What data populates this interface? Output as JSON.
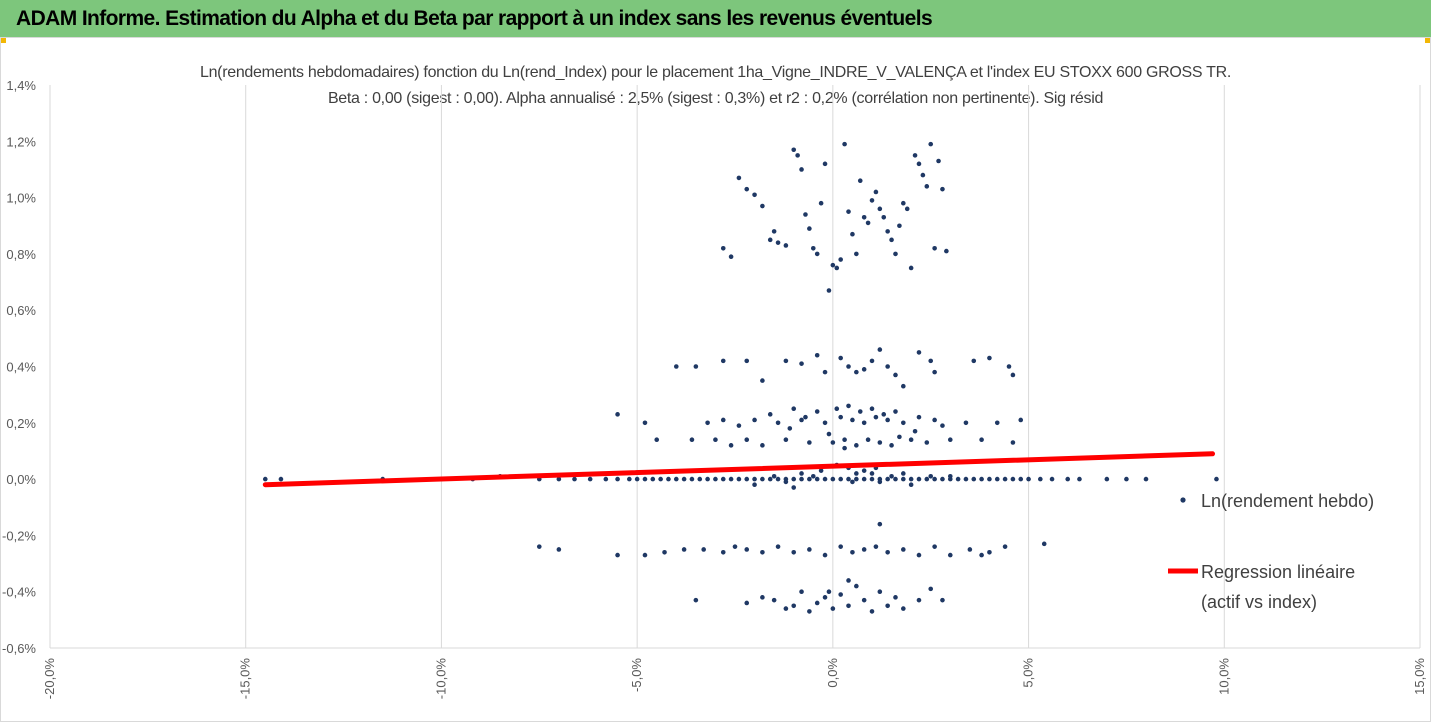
{
  "header": {
    "title": "ADAM Informe. Estimation du Alpha et du Beta par rapport à un index sans les revenus éventuels"
  },
  "colors": {
    "header_bg": "#7dc67c",
    "points": "#1f3864",
    "regression": "#ff0000",
    "grid": "#d9d9d9",
    "corner_marks": "#f2b705"
  },
  "chart_data": {
    "type": "scatter",
    "title_line1": "Ln(rendements hebdomadaires) fonction du Ln(rend_Index) pour le placement 1ha_Vigne_INDRE_V_VALENÇA et l'index EU STOXX 600 GROSS TR.",
    "title_line2": "Beta : 0,00 (sigest : 0,00). Alpha annualisé : 2,5% (sigest : 0,3%) et r2 : 0,2% (corrélation non pertinente). Sig résid",
    "xlim": [
      -0.2,
      0.15
    ],
    "ylim": [
      -0.006,
      0.014
    ],
    "x_ticks": [
      -0.2,
      -0.15,
      -0.1,
      -0.05,
      0.0,
      0.05,
      0.1,
      0.15
    ],
    "x_tick_labels": [
      "-20,0%",
      "-15,0%",
      "-10,0%",
      "-5,0%",
      "0,0%",
      "5,0%",
      "10,0%",
      "15,0%"
    ],
    "y_ticks": [
      -0.006,
      -0.004,
      -0.002,
      0.0,
      0.002,
      0.004,
      0.006,
      0.008,
      0.01,
      0.012,
      0.014
    ],
    "y_tick_labels": [
      "-0,6%",
      "-0,4%",
      "-0,2%",
      "0,0%",
      "0,2%",
      "0,4%",
      "0,6%",
      "0,8%",
      "1,0%",
      "1,2%",
      "1,4%"
    ],
    "grid": "vertical",
    "legend_position": "right",
    "series": [
      {
        "name": "Ln(rendement hebdo)",
        "kind": "points",
        "points": [
          [
            -0.145,
            0.0
          ],
          [
            -0.141,
            0.0
          ],
          [
            -0.115,
            0.0
          ],
          [
            -0.1,
            0.0
          ],
          [
            -0.092,
            0.0
          ],
          [
            -0.085,
            0.0001
          ],
          [
            -0.075,
            0.0
          ],
          [
            -0.07,
            0.0
          ],
          [
            -0.066,
            0.0
          ],
          [
            -0.062,
            0.0
          ],
          [
            -0.058,
            0.0
          ],
          [
            -0.055,
            0.0
          ],
          [
            -0.052,
            0.0
          ],
          [
            -0.05,
            0.0
          ],
          [
            -0.048,
            0.0
          ],
          [
            -0.046,
            0.0
          ],
          [
            -0.044,
            0.0
          ],
          [
            -0.042,
            0.0
          ],
          [
            -0.04,
            0.0
          ],
          [
            -0.038,
            0.0
          ],
          [
            -0.036,
            0.0
          ],
          [
            -0.034,
            0.0
          ],
          [
            -0.032,
            0.0
          ],
          [
            -0.03,
            0.0
          ],
          [
            -0.028,
            0.0
          ],
          [
            -0.026,
            0.0
          ],
          [
            -0.024,
            0.0
          ],
          [
            -0.022,
            0.0
          ],
          [
            -0.02,
            0.0
          ],
          [
            -0.018,
            0.0
          ],
          [
            -0.016,
            0.0
          ],
          [
            -0.014,
            0.0
          ],
          [
            -0.012,
            0.0
          ],
          [
            -0.01,
            0.0
          ],
          [
            -0.008,
            0.0
          ],
          [
            -0.006,
            0.0
          ],
          [
            -0.004,
            0.0
          ],
          [
            -0.002,
            0.0
          ],
          [
            0.0,
            0.0
          ],
          [
            0.002,
            0.0
          ],
          [
            0.004,
            0.0
          ],
          [
            0.006,
            0.0
          ],
          [
            0.008,
            0.0
          ],
          [
            0.01,
            0.0
          ],
          [
            0.012,
            0.0
          ],
          [
            0.014,
            0.0
          ],
          [
            0.016,
            0.0
          ],
          [
            0.018,
            0.0
          ],
          [
            0.02,
            0.0
          ],
          [
            0.022,
            0.0
          ],
          [
            0.024,
            0.0
          ],
          [
            0.026,
            0.0
          ],
          [
            0.028,
            0.0
          ],
          [
            0.03,
            0.0
          ],
          [
            0.032,
            0.0
          ],
          [
            0.034,
            0.0
          ],
          [
            0.036,
            0.0
          ],
          [
            0.038,
            0.0
          ],
          [
            0.04,
            0.0
          ],
          [
            0.042,
            0.0
          ],
          [
            0.044,
            0.0
          ],
          [
            0.046,
            0.0
          ],
          [
            0.048,
            0.0
          ],
          [
            0.05,
            0.0
          ],
          [
            0.053,
            0.0
          ],
          [
            0.056,
            0.0
          ],
          [
            0.06,
            0.0
          ],
          [
            0.063,
            0.0
          ],
          [
            0.07,
            0.0
          ],
          [
            0.075,
            0.0
          ],
          [
            0.08,
            0.0
          ],
          [
            0.098,
            0.0
          ],
          [
            -0.02,
            -0.0002
          ],
          [
            -0.01,
            -0.0003
          ],
          [
            -0.005,
            0.0001
          ],
          [
            0.005,
            -0.0001
          ],
          [
            0.01,
            0.0002
          ],
          [
            0.015,
            0.0001
          ],
          [
            0.02,
            -0.0002
          ],
          [
            0.025,
            0.0001
          ],
          [
            -0.015,
            0.0001
          ],
          [
            0.008,
            0.0003
          ],
          [
            -0.008,
            0.0002
          ],
          [
            0.012,
            -0.0001
          ],
          [
            0.018,
            0.0002
          ],
          [
            0.004,
            0.0004
          ],
          [
            -0.003,
            0.0003
          ],
          [
            0.001,
            0.0005
          ],
          [
            0.011,
            0.0004
          ],
          [
            0.006,
            0.0002
          ],
          [
            -0.012,
            -0.0001
          ],
          [
            0.03,
            0.0001
          ],
          [
            -0.055,
            0.0023
          ],
          [
            -0.048,
            0.002
          ],
          [
            -0.045,
            0.0014
          ],
          [
            -0.036,
            0.0014
          ],
          [
            -0.032,
            0.002
          ],
          [
            -0.03,
            0.0014
          ],
          [
            -0.028,
            0.0021
          ],
          [
            -0.026,
            0.0012
          ],
          [
            -0.024,
            0.0019
          ],
          [
            -0.022,
            0.0014
          ],
          [
            -0.02,
            0.0021
          ],
          [
            -0.018,
            0.0012
          ],
          [
            -0.016,
            0.0023
          ],
          [
            -0.014,
            0.002
          ],
          [
            -0.012,
            0.0014
          ],
          [
            -0.01,
            0.0025
          ],
          [
            -0.008,
            0.0021
          ],
          [
            -0.006,
            0.0013
          ],
          [
            -0.004,
            0.0024
          ],
          [
            -0.002,
            0.002
          ],
          [
            0.0,
            0.0013
          ],
          [
            0.001,
            0.0025
          ],
          [
            0.002,
            0.0022
          ],
          [
            0.003,
            0.0014
          ],
          [
            0.004,
            0.0026
          ],
          [
            0.005,
            0.0021
          ],
          [
            0.006,
            0.0012
          ],
          [
            0.007,
            0.0024
          ],
          [
            0.008,
            0.002
          ],
          [
            0.009,
            0.0014
          ],
          [
            0.01,
            0.0025
          ],
          [
            0.011,
            0.0022
          ],
          [
            0.012,
            0.0013
          ],
          [
            0.013,
            0.0023
          ],
          [
            0.014,
            0.0021
          ],
          [
            0.015,
            0.0012
          ],
          [
            0.016,
            0.0024
          ],
          [
            0.018,
            0.002
          ],
          [
            0.02,
            0.0014
          ],
          [
            0.022,
            0.0022
          ],
          [
            0.024,
            0.0013
          ],
          [
            0.026,
            0.0021
          ],
          [
            0.028,
            0.0019
          ],
          [
            0.03,
            0.0014
          ],
          [
            0.034,
            0.002
          ],
          [
            0.038,
            0.0014
          ],
          [
            0.042,
            0.002
          ],
          [
            0.046,
            0.0013
          ],
          [
            0.048,
            0.0021
          ],
          [
            -0.001,
            0.0016
          ],
          [
            0.003,
            0.0011
          ],
          [
            -0.007,
            0.0022
          ],
          [
            0.017,
            0.0015
          ],
          [
            0.021,
            0.0017
          ],
          [
            -0.011,
            0.0018
          ],
          [
            -0.04,
            0.004
          ],
          [
            -0.035,
            0.004
          ],
          [
            -0.028,
            0.0042
          ],
          [
            -0.022,
            0.0042
          ],
          [
            -0.012,
            0.0042
          ],
          [
            -0.008,
            0.0041
          ],
          [
            -0.004,
            0.0044
          ],
          [
            -0.002,
            0.0038
          ],
          [
            0.002,
            0.0043
          ],
          [
            0.004,
            0.004
          ],
          [
            0.006,
            0.0038
          ],
          [
            0.01,
            0.0042
          ],
          [
            0.012,
            0.0046
          ],
          [
            0.014,
            0.004
          ],
          [
            0.016,
            0.0037
          ],
          [
            0.018,
            0.0033
          ],
          [
            0.022,
            0.0045
          ],
          [
            0.025,
            0.0042
          ],
          [
            0.026,
            0.0038
          ],
          [
            0.036,
            0.0042
          ],
          [
            0.04,
            0.0043
          ],
          [
            0.045,
            0.004
          ],
          [
            0.046,
            0.0037
          ],
          [
            -0.018,
            0.0035
          ],
          [
            0.008,
            0.0039
          ],
          [
            -0.028,
            0.0082
          ],
          [
            -0.026,
            0.0079
          ],
          [
            -0.024,
            0.0107
          ],
          [
            -0.022,
            0.0103
          ],
          [
            -0.02,
            0.0101
          ],
          [
            -0.018,
            0.0097
          ],
          [
            -0.016,
            0.0085
          ],
          [
            -0.014,
            0.0084
          ],
          [
            -0.012,
            0.0083
          ],
          [
            -0.01,
            0.0117
          ],
          [
            -0.009,
            0.0115
          ],
          [
            -0.008,
            0.011
          ],
          [
            -0.007,
            0.0094
          ],
          [
            -0.006,
            0.0089
          ],
          [
            -0.005,
            0.0082
          ],
          [
            -0.004,
            0.008
          ],
          [
            -0.002,
            0.0112
          ],
          [
            0.0,
            0.0076
          ],
          [
            0.001,
            0.0075
          ],
          [
            0.002,
            0.0078
          ],
          [
            0.003,
            0.0119
          ],
          [
            0.004,
            0.0095
          ],
          [
            0.005,
            0.0087
          ],
          [
            0.006,
            0.008
          ],
          [
            -0.001,
            0.0067
          ],
          [
            0.007,
            0.0106
          ],
          [
            0.008,
            0.0093
          ],
          [
            0.009,
            0.0091
          ],
          [
            0.01,
            0.0099
          ],
          [
            0.011,
            0.0102
          ],
          [
            0.012,
            0.0096
          ],
          [
            0.013,
            0.0093
          ],
          [
            0.014,
            0.0088
          ],
          [
            0.015,
            0.0085
          ],
          [
            0.016,
            0.008
          ],
          [
            0.018,
            0.0098
          ],
          [
            0.02,
            0.0075
          ],
          [
            0.021,
            0.0115
          ],
          [
            0.022,
            0.0112
          ],
          [
            0.023,
            0.0108
          ],
          [
            0.024,
            0.0104
          ],
          [
            0.025,
            0.0119
          ],
          [
            0.026,
            0.0082
          ],
          [
            0.027,
            0.0113
          ],
          [
            0.028,
            0.0103
          ],
          [
            0.029,
            0.0081
          ],
          [
            0.019,
            0.0096
          ],
          [
            0.017,
            0.009
          ],
          [
            -0.003,
            0.0098
          ],
          [
            -0.015,
            0.0088
          ],
          [
            -0.075,
            -0.0024
          ],
          [
            -0.07,
            -0.0025
          ],
          [
            -0.055,
            -0.0027
          ],
          [
            -0.048,
            -0.0027
          ],
          [
            -0.043,
            -0.0026
          ],
          [
            -0.038,
            -0.0025
          ],
          [
            -0.033,
            -0.0025
          ],
          [
            -0.028,
            -0.0026
          ],
          [
            -0.025,
            -0.0024
          ],
          [
            -0.022,
            -0.0025
          ],
          [
            -0.018,
            -0.0026
          ],
          [
            -0.014,
            -0.0024
          ],
          [
            -0.01,
            -0.0026
          ],
          [
            -0.006,
            -0.0025
          ],
          [
            -0.002,
            -0.0027
          ],
          [
            0.002,
            -0.0024
          ],
          [
            0.005,
            -0.0026
          ],
          [
            0.008,
            -0.0025
          ],
          [
            0.011,
            -0.0024
          ],
          [
            0.014,
            -0.0026
          ],
          [
            0.018,
            -0.0025
          ],
          [
            0.022,
            -0.0027
          ],
          [
            0.026,
            -0.0024
          ],
          [
            0.03,
            -0.0027
          ],
          [
            0.035,
            -0.0025
          ],
          [
            0.038,
            -0.0027
          ],
          [
            0.04,
            -0.0026
          ],
          [
            0.044,
            -0.0024
          ],
          [
            0.054,
            -0.0023
          ],
          [
            0.012,
            -0.0016
          ],
          [
            -0.035,
            -0.0043
          ],
          [
            -0.022,
            -0.0044
          ],
          [
            -0.018,
            -0.0042
          ],
          [
            -0.015,
            -0.0043
          ],
          [
            -0.012,
            -0.0046
          ],
          [
            -0.01,
            -0.0045
          ],
          [
            -0.008,
            -0.004
          ],
          [
            -0.006,
            -0.0047
          ],
          [
            -0.004,
            -0.0044
          ],
          [
            -0.002,
            -0.0042
          ],
          [
            0.0,
            -0.0046
          ],
          [
            0.002,
            -0.0041
          ],
          [
            0.004,
            -0.0045
          ],
          [
            0.006,
            -0.0038
          ],
          [
            0.008,
            -0.0043
          ],
          [
            0.01,
            -0.0047
          ],
          [
            0.012,
            -0.004
          ],
          [
            0.014,
            -0.0045
          ],
          [
            0.016,
            -0.0042
          ],
          [
            0.018,
            -0.0046
          ],
          [
            0.022,
            -0.0043
          ],
          [
            0.025,
            -0.0039
          ],
          [
            0.028,
            -0.0043
          ],
          [
            0.004,
            -0.0036
          ],
          [
            -0.001,
            -0.004
          ]
        ]
      },
      {
        "name": "Regression linéaire (actif vs index)",
        "kind": "line",
        "legend_lines": [
          "Regression linéaire",
          "(actif vs index)"
        ],
        "points": [
          [
            -0.145,
            -0.0002
          ],
          [
            0.097,
            0.0009
          ]
        ]
      }
    ]
  }
}
